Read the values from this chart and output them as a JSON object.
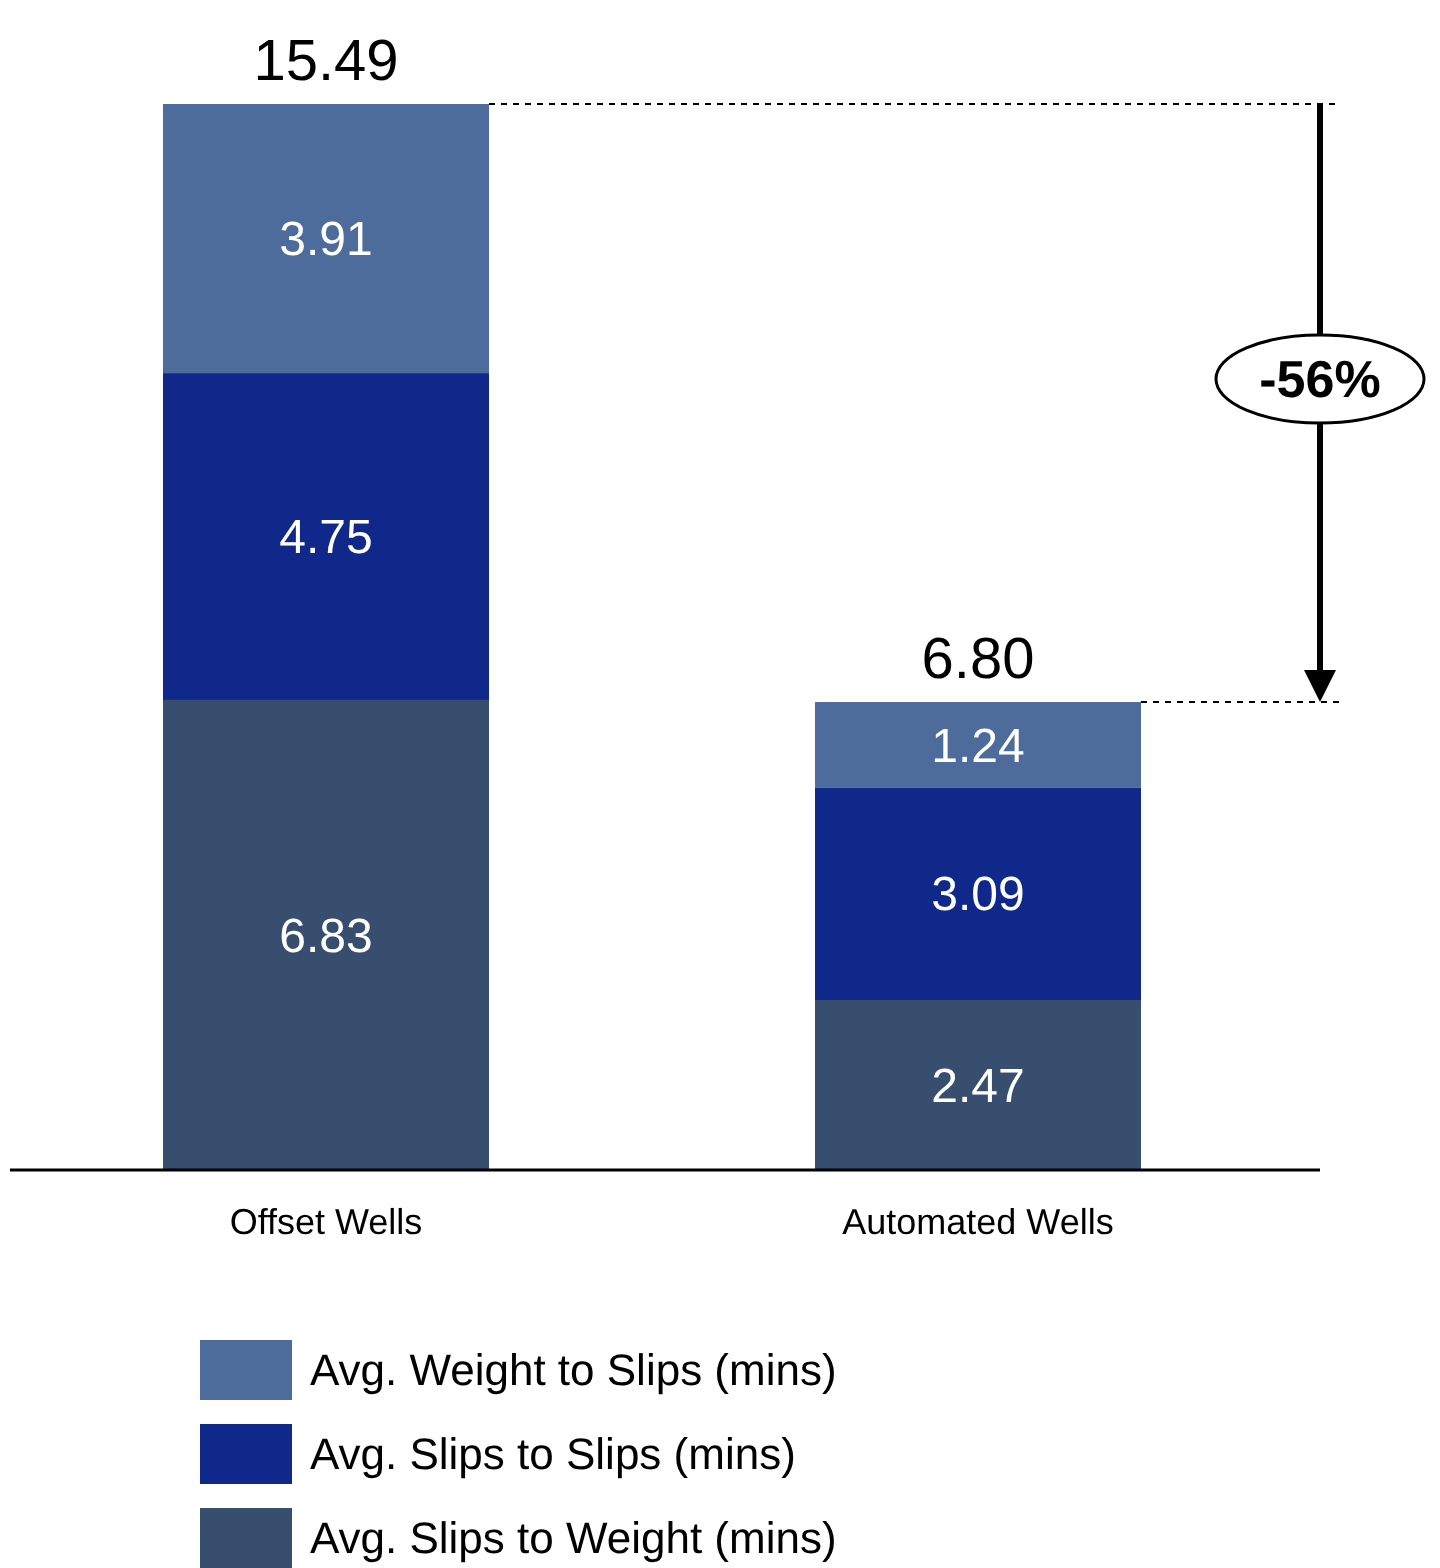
{
  "chart_data": {
    "type": "bar",
    "stacked": true,
    "categories": [
      "Offset Wells",
      "Automated Wells"
    ],
    "series": [
      {
        "name": "Avg. Slips to Weight (mins)",
        "color": "#374e6e",
        "values": [
          6.83,
          2.47
        ]
      },
      {
        "name": "Avg. Slips to Slips (mins)",
        "color": "#10288a",
        "values": [
          4.75,
          3.09
        ]
      },
      {
        "name": "Avg. Weight to Slips (mins)",
        "color": "#4d6c9c",
        "values": [
          3.91,
          1.24
        ]
      }
    ],
    "data_labels": true,
    "totals": [
      "15.49",
      "6.80"
    ],
    "annotations": [
      "-56%"
    ],
    "legend": "bottom"
  }
}
